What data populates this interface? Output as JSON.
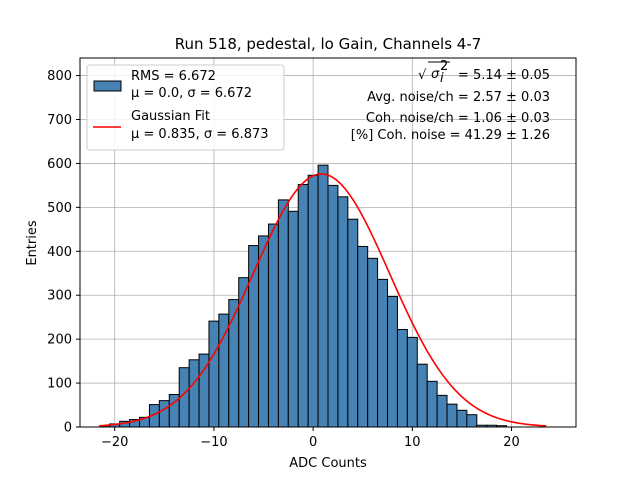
{
  "chart_data": {
    "type": "bar",
    "title": "Run 518, pedestal, lo Gain, Channels 4-7",
    "xlabel": "ADC Counts",
    "ylabel": "Entries",
    "xlim": [
      -23.5,
      26.5
    ],
    "ylim": [
      0,
      840
    ],
    "xticks": [
      -20,
      -10,
      0,
      10,
      20
    ],
    "xtick_labels": [
      "−20",
      "−10",
      "0",
      "10",
      "20"
    ],
    "yticks": [
      0,
      100,
      200,
      300,
      400,
      500,
      600,
      700,
      800
    ],
    "ytick_labels": [
      "0",
      "100",
      "200",
      "300",
      "400",
      "500",
      "600",
      "700",
      "800"
    ],
    "grid": true,
    "bin_width": 1,
    "bin_edges_start": -21,
    "values": [
      3,
      7,
      13,
      17,
      22,
      51,
      60,
      74,
      135,
      153,
      166,
      241,
      257,
      290,
      340,
      413,
      435,
      462,
      517,
      491,
      552,
      573,
      596,
      550,
      524,
      473,
      411,
      384,
      336,
      297,
      222,
      204,
      143,
      104,
      72,
      52,
      38,
      28,
      4,
      4,
      3,
      0
    ],
    "series": [
      {
        "name": "RMS",
        "label": "RMS = 6.672",
        "sublabel": "μ = 0.0, σ = 6.672",
        "color": "#4682b4",
        "edge": "#000000"
      },
      {
        "name": "Gaussian Fit",
        "label": "Gaussian Fit",
        "sublabel": "μ = 0.835, σ = 6.873",
        "color": "#ff0000",
        "mu": 0.835,
        "sigma": 6.873,
        "amplitude": 576,
        "x_range": [
          -21.5,
          23.5
        ]
      }
    ],
    "legend_position": "top-left",
    "annotations": {
      "sqrt_prefix": "√",
      "sigma_symbol": "σ",
      "sigma_sub": "i",
      "sigma_sup": "2",
      "line1_value": " = 5.14 ± 0.05",
      "line2": "Avg. noise/ch = 2.57 ± 0.03",
      "line3": "Coh. noise/ch = 1.06 ± 0.03",
      "line4": "[%] Coh. noise = 41.29 ± 1.26"
    }
  }
}
